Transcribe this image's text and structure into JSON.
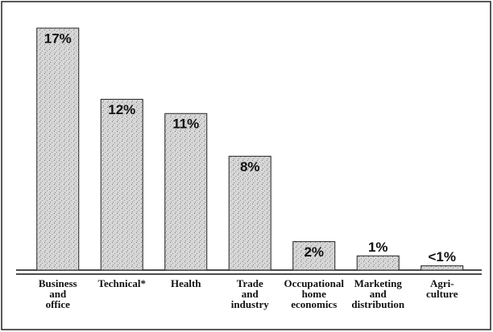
{
  "chart_data": {
    "type": "bar",
    "categories": [
      "Business\nand\noffice",
      "Technical*",
      "Health",
      "Trade\nand\nindustry",
      "Occupational\nhome\neconomics",
      "Marketing\nand\ndistribution",
      "Agri-\nculture"
    ],
    "values": [
      17,
      12,
      11,
      8,
      2,
      1,
      0.3
    ],
    "value_labels": [
      "17%",
      "12%",
      "11%",
      "8%",
      "2%",
      "1%",
      "<1%"
    ],
    "color": "#cfcfcf"
  }
}
